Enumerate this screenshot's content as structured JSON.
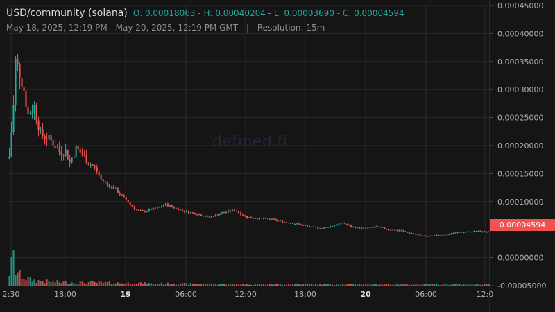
{
  "header": {
    "symbol": "USD/community (solana)",
    "ohlc": "O: 0.00018063 - H: 0.00040204 - L: 0.00003690 - C: 0.00004594",
    "range": "May 18, 2025, 12:19 PM - May 20, 2025, 12:19 PM GMT",
    "separator": "|",
    "resolution": "Resolution: 15m"
  },
  "watermark": "defined.fi",
  "last_price_label": "0.00004594",
  "colors": {
    "background": "#151515",
    "up": "#26a69a",
    "down": "#ef5350",
    "grid": "#2a2a2a",
    "axis_text": "#b0b0b0"
  },
  "chart_data": {
    "type": "candlestick",
    "title": "",
    "xlabel": "",
    "ylabel": "",
    "ylim": [
      -5e-05,
      0.00045
    ],
    "grid": true,
    "y_ticks": [
      "0.00045000",
      "0.00040000",
      "0.00035000",
      "0.00030000",
      "0.00025000",
      "0.00020000",
      "0.00015000",
      "0.00010000",
      "0.00000000",
      "-0.00005000"
    ],
    "x_ticks": [
      "2:30",
      "18:00",
      "19",
      "06:00",
      "12:00",
      "18:00",
      "20",
      "06:00",
      "12:0"
    ],
    "x_tick_bold": [
      false,
      false,
      true,
      false,
      false,
      false,
      true,
      false,
      false
    ],
    "last_price": 4.594e-05,
    "close_anchors": [
      [
        0,
        0.00018
      ],
      [
        2,
        0.00027
      ],
      [
        3,
        0.00035
      ],
      [
        5,
        0.00033
      ],
      [
        7,
        0.0003
      ],
      [
        9,
        0.000255
      ],
      [
        12,
        0.00027
      ],
      [
        15,
        0.00022
      ],
      [
        18,
        0.000215
      ],
      [
        21,
        0.000205
      ],
      [
        24,
        0.00019
      ],
      [
        27,
        0.00019
      ],
      [
        29,
        0.00017
      ],
      [
        32,
        0.000195
      ],
      [
        35,
        0.000185
      ],
      [
        38,
        0.00017
      ],
      [
        41,
        0.00016
      ],
      [
        44,
        0.00014
      ],
      [
        47,
        0.00013
      ],
      [
        50,
        0.000125
      ],
      [
        54,
        0.00011
      ],
      [
        58,
        9.5e-05
      ],
      [
        61,
        8.5e-05
      ],
      [
        64,
        8.2e-05
      ],
      [
        68,
        8.6e-05
      ],
      [
        72,
        9e-05
      ],
      [
        75,
        9.5e-05
      ],
      [
        80,
        8.8e-05
      ],
      [
        84,
        8.3e-05
      ],
      [
        90,
        7.8e-05
      ],
      [
        96,
        7.2e-05
      ],
      [
        102,
        8e-05
      ],
      [
        108,
        8.5e-05
      ],
      [
        114,
        7.2e-05
      ],
      [
        120,
        7e-05
      ],
      [
        126,
        6.8e-05
      ],
      [
        130,
        6.5e-05
      ],
      [
        138,
        6e-05
      ],
      [
        144,
        5.5e-05
      ],
      [
        150,
        5.2e-05
      ],
      [
        156,
        5.8e-05
      ],
      [
        160,
        6.2e-05
      ],
      [
        164,
        5.5e-05
      ],
      [
        170,
        5.2e-05
      ],
      [
        176,
        5.5e-05
      ],
      [
        182,
        5e-05
      ],
      [
        188,
        4.8e-05
      ],
      [
        194,
        4.2e-05
      ],
      [
        200,
        3.8e-05
      ],
      [
        206,
        4e-05
      ],
      [
        212,
        4.3e-05
      ],
      [
        218,
        4.6e-05
      ],
      [
        224,
        4.7e-05
      ],
      [
        230,
        4.6e-05
      ]
    ],
    "volume_profile": [
      [
        0,
        2.8e-05
      ],
      [
        2,
        5.8e-05
      ],
      [
        3,
        3.2e-05
      ],
      [
        5,
        2.2e-05
      ],
      [
        7,
        1.8e-05
      ],
      [
        10,
        1.2e-05
      ],
      [
        14,
        1e-05
      ],
      [
        20,
        8e-06
      ],
      [
        30,
        7e-06
      ],
      [
        45,
        6e-06
      ],
      [
        60,
        5e-06
      ],
      [
        80,
        4e-06
      ],
      [
        120,
        3e-06
      ],
      [
        180,
        3e-06
      ],
      [
        230,
        3e-06
      ]
    ]
  }
}
